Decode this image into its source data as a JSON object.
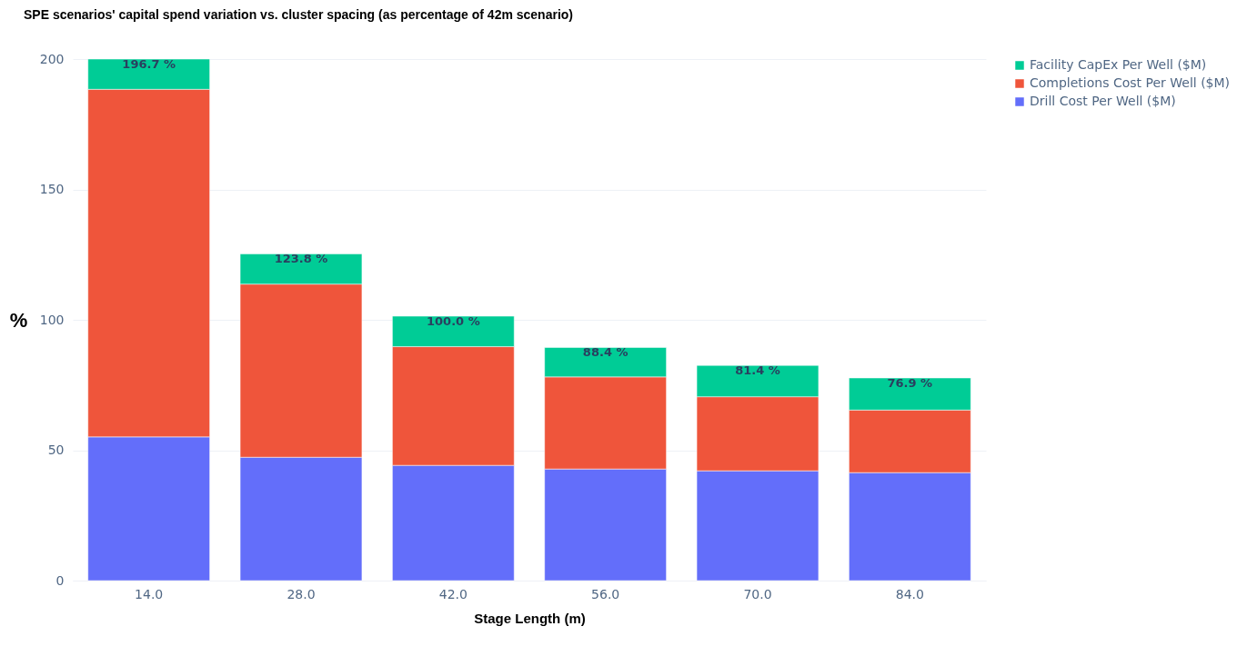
{
  "chart_data": {
    "type": "bar",
    "title": "SPE scenarios' capital spend variation vs. cluster spacing (as percentage of 42m scenario)",
    "xlabel": "Stage Length (m)",
    "ylabel": "%",
    "categories": [
      "14.0",
      "28.0",
      "42.0",
      "56.0",
      "70.0",
      "84.0"
    ],
    "stacked": true,
    "series": [
      {
        "name": "Drill Cost Per Well ($M)",
        "color": "#636efa",
        "values": [
          55.1,
          47.3,
          44.2,
          42.8,
          42.1,
          41.4
        ]
      },
      {
        "name": "Completions Cost Per Well ($M)",
        "color": "#ef553b",
        "values": [
          133.3,
          66.4,
          45.5,
          35.3,
          28.4,
          24.0
        ]
      },
      {
        "name": "Facility CapEx Per Well ($M)",
        "color": "#00cc96",
        "values": [
          11.6,
          11.6,
          11.7,
          11.3,
          12.0,
          12.3
        ]
      }
    ],
    "annotations": [
      {
        "text": "196.7 %",
        "x": "14.0",
        "y": 200
      },
      {
        "text": "123.8 %",
        "x": "28.0",
        "y": 125.3
      },
      {
        "text": "100.0 %",
        "x": "42.0",
        "y": 101.4
      },
      {
        "text": "88.4 %",
        "x": "56.0",
        "y": 89.4
      },
      {
        "text": "81.4 %",
        "x": "70.0",
        "y": 82.5
      },
      {
        "text": "76.9 %",
        "x": "84.0",
        "y": 77.7
      }
    ],
    "ylim": [
      0,
      200
    ],
    "yticks": [
      0,
      50,
      100,
      150,
      200
    ],
    "grid": "y",
    "legend": "top right"
  }
}
